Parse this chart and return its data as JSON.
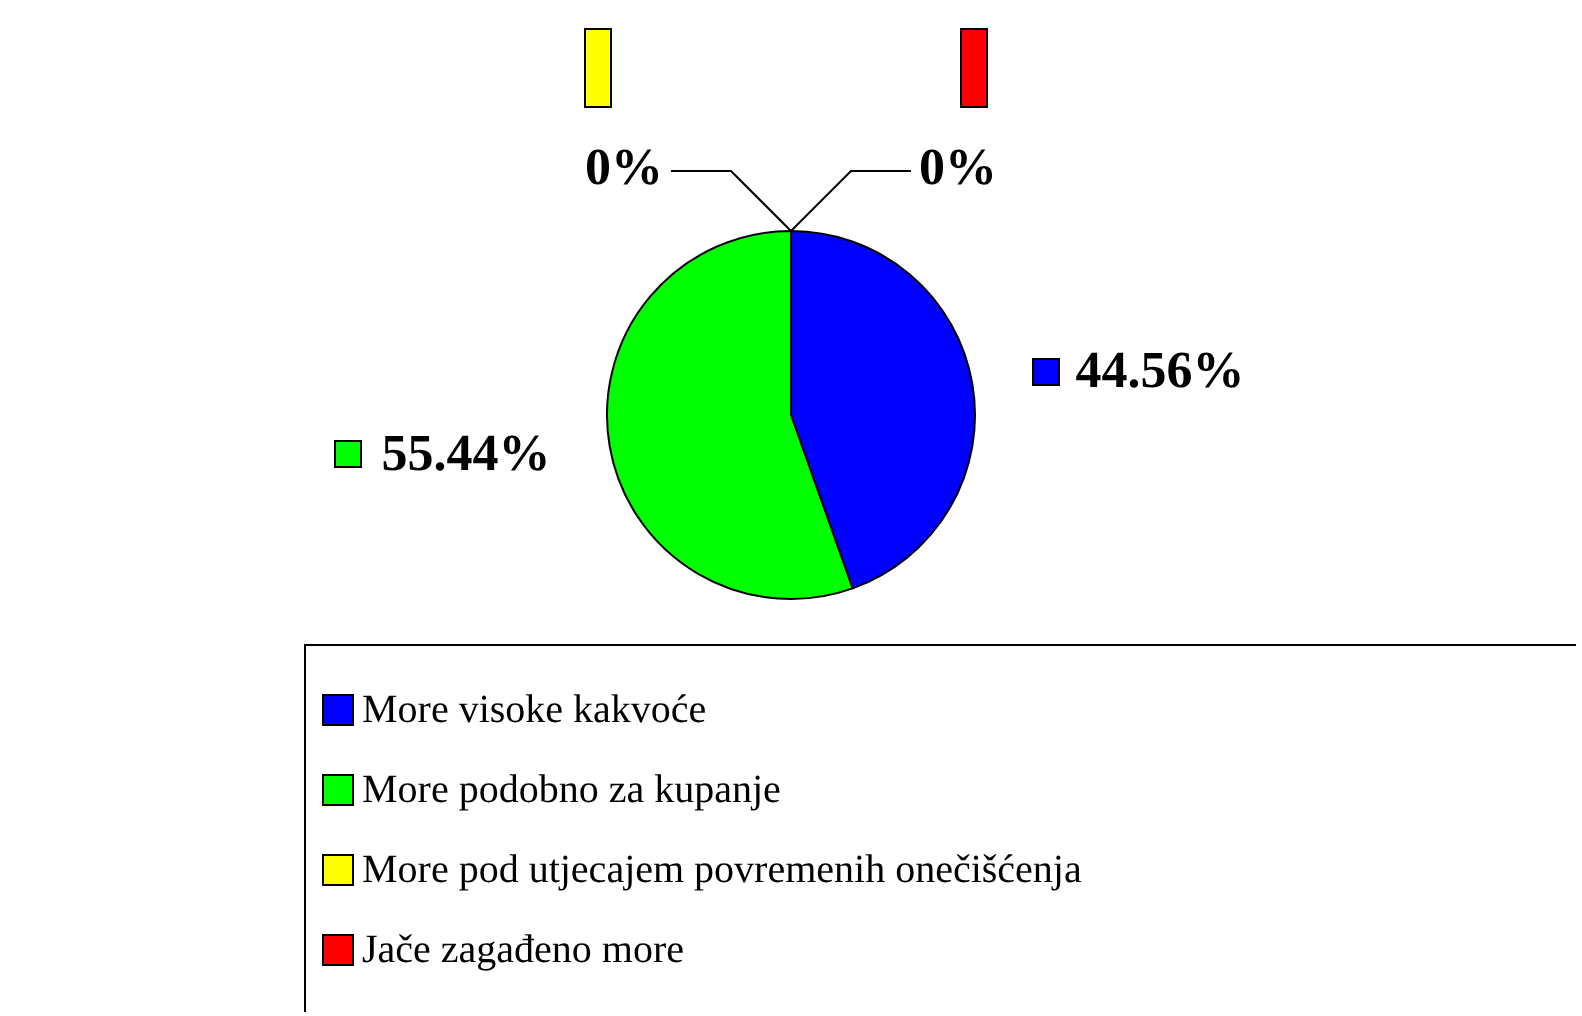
{
  "chart_data": {
    "type": "pie",
    "categories": [
      "More visoke kakvoće",
      "More podobno za kupanje",
      "More pod utjecajem povremenih onečišćenja",
      "Jače zagađeno more"
    ],
    "values": [
      44.56,
      55.44,
      0,
      0
    ],
    "value_labels": [
      "44.56%",
      "55.44%",
      "0%",
      "0%"
    ],
    "colors": [
      "#0000ff",
      "#00ff00",
      "#ffff00",
      "#ff0000"
    ],
    "legend": "bottom"
  }
}
